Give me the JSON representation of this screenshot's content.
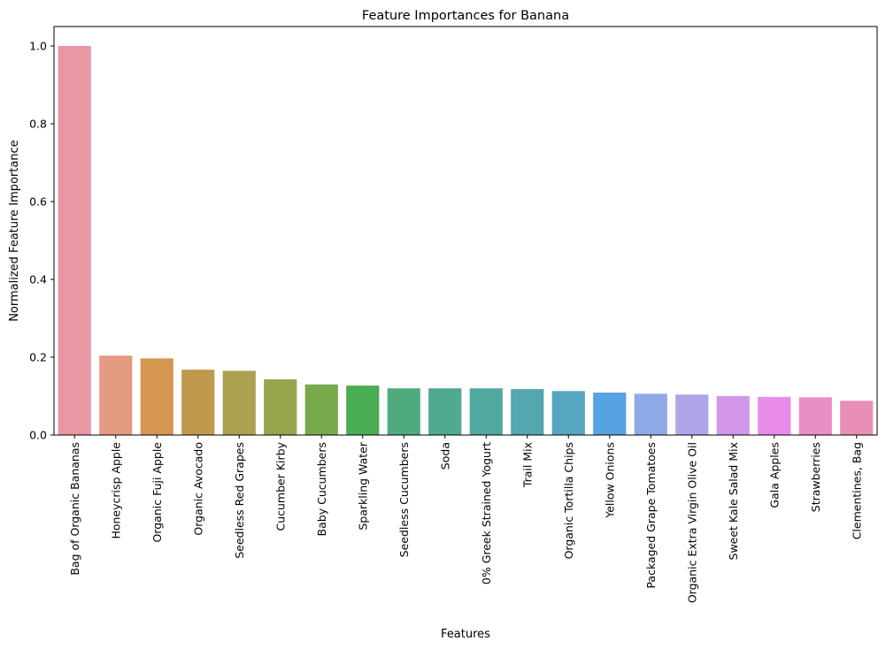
{
  "chart_data": {
    "type": "bar",
    "title": "Feature Importances for Banana",
    "xlabel": "Features",
    "ylabel": "Normalized Feature Importance",
    "ylim": [
      0,
      1.05
    ],
    "yticks": [
      0.0,
      0.2,
      0.4,
      0.6,
      0.8,
      1.0
    ],
    "ytick_labels": [
      "0.0",
      "0.2",
      "0.4",
      "0.6",
      "0.8",
      "1.0"
    ],
    "grid": false,
    "categories": [
      "Bag of Organic Bananas",
      "Honeycrisp Apple",
      "Organic Fuji Apple",
      "Organic Avocado",
      "Seedless Red Grapes",
      "Cucumber Kirby",
      "Baby Cucumbers",
      "Sparkling Water",
      "Seedless Cucumbers",
      "Soda",
      "0% Greek Strained Yogurt",
      "Trail Mix",
      "Organic Tortilla Chips",
      "Yellow Onions",
      "Packaged Grape Tomatoes",
      "Organic Extra Virgin Olive Oil",
      "Sweet Kale Salad Mix",
      "Gala Apples",
      "Strawberries",
      "Clementines, Bag"
    ],
    "values": [
      1.0,
      0.204,
      0.197,
      0.168,
      0.165,
      0.143,
      0.13,
      0.127,
      0.12,
      0.12,
      0.12,
      0.118,
      0.113,
      0.109,
      0.106,
      0.104,
      0.1,
      0.098,
      0.097,
      0.088
    ],
    "colors": [
      "#ea96a3",
      "#e59a82",
      "#d5964f",
      "#c1994e",
      "#ada150",
      "#98a44c",
      "#78aa4b",
      "#4aac53",
      "#4fab7d",
      "#50a991",
      "#51a89f",
      "#53a7ae",
      "#55a6c1",
      "#57a2e0",
      "#8ea9e6",
      "#b1a5ea",
      "#d396eb",
      "#e98ce9",
      "#ea8ec8",
      "#e98fb5"
    ]
  }
}
